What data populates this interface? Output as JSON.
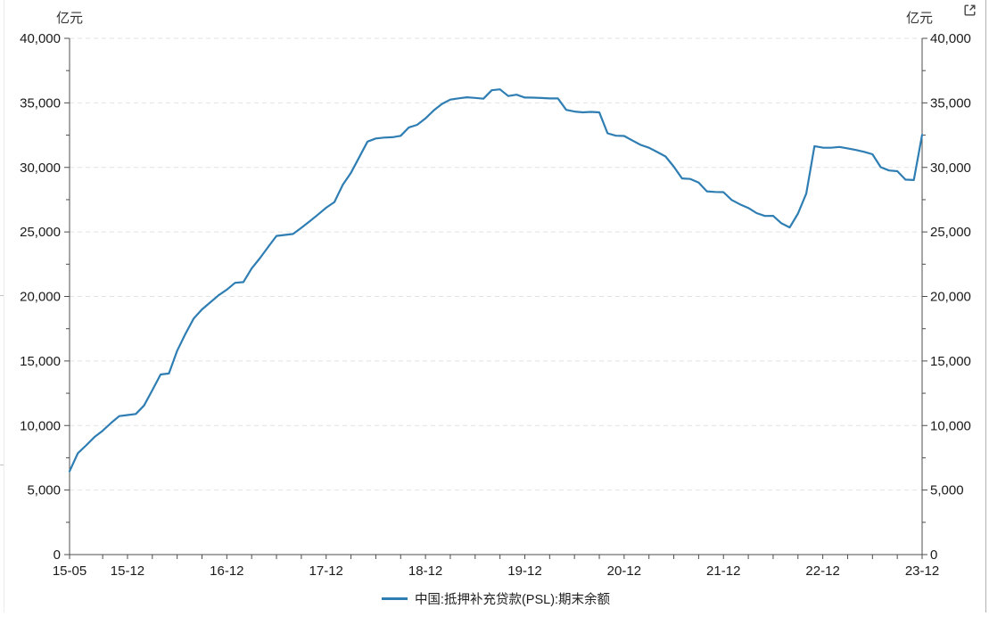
{
  "panel": {
    "unit_left": "亿元",
    "unit_right": "亿元"
  },
  "icons": {
    "external_link": "external-link-icon"
  },
  "legend": {
    "label": "中国:抵押补充贷款(PSL):期末余额"
  },
  "colors": {
    "line": "#2f7eb3",
    "grid": "#e2e2e2",
    "axis": "#4d4d4d",
    "text": "#1a1a1a",
    "icon": "#444444"
  },
  "chart_data": {
    "type": "line",
    "title": "",
    "series_name": "中国:抵押补充贷款(PSL):期末余额",
    "unit": "亿元",
    "ylim": [
      0,
      40000
    ],
    "ytick_step": 5000,
    "yminor_step": 2500,
    "ytick_labels": [
      "0",
      "5,000",
      "10,000",
      "15,000",
      "20,000",
      "25,000",
      "30,000",
      "35,000",
      "40,000"
    ],
    "xtick_labels": [
      "15-05",
      "15-12",
      "16-12",
      "17-12",
      "18-12",
      "19-12",
      "20-12",
      "21-12",
      "22-12",
      "23-12"
    ],
    "grid": "horizontal-dashed",
    "legend_position": "bottom-center",
    "x": [
      "15-05",
      "15-06",
      "15-07",
      "15-08",
      "15-09",
      "15-10",
      "15-11",
      "15-12",
      "16-01",
      "16-02",
      "16-03",
      "16-04",
      "16-05",
      "16-06",
      "16-07",
      "16-08",
      "16-09",
      "16-10",
      "16-11",
      "16-12",
      "17-01",
      "17-02",
      "17-03",
      "17-04",
      "17-05",
      "17-06",
      "17-07",
      "17-08",
      "17-09",
      "17-10",
      "17-11",
      "17-12",
      "18-01",
      "18-02",
      "18-03",
      "18-04",
      "18-05",
      "18-06",
      "18-07",
      "18-08",
      "18-09",
      "18-10",
      "18-11",
      "18-12",
      "19-01",
      "19-02",
      "19-03",
      "19-04",
      "19-05",
      "19-06",
      "19-07",
      "19-08",
      "19-09",
      "19-10",
      "19-11",
      "19-12",
      "20-01",
      "20-02",
      "20-03",
      "20-04",
      "20-05",
      "20-06",
      "20-07",
      "20-08",
      "20-09",
      "20-10",
      "20-11",
      "20-12",
      "21-01",
      "21-02",
      "21-03",
      "21-04",
      "21-05",
      "21-06",
      "21-07",
      "21-08",
      "21-09",
      "21-10",
      "21-11",
      "21-12",
      "22-01",
      "22-02",
      "22-03",
      "22-04",
      "22-05",
      "22-06",
      "22-07",
      "22-08",
      "22-09",
      "22-10",
      "22-11",
      "22-12",
      "23-01",
      "23-02",
      "23-03",
      "23-04",
      "23-05",
      "23-06",
      "23-07",
      "23-08",
      "23-09",
      "23-10",
      "23-11",
      "23-12"
    ],
    "values": [
      6459,
      7858,
      8464,
      9098,
      9599,
      10188,
      10727,
      10812,
      10895,
      11550,
      12736,
      13956,
      14034,
      15800,
      17100,
      18297,
      18997,
      19544,
      20088,
      20526,
      21054,
      21109,
      22170,
      22970,
      23838,
      24694,
      24764,
      24842,
      25322,
      25821,
      26334,
      26876,
      27317,
      28640,
      29590,
      30800,
      32000,
      32242,
      32313,
      32338,
      32450,
      33100,
      33300,
      33795,
      34419,
      34921,
      35253,
      35353,
      35435,
      35385,
      35322,
      35979,
      36049,
      35533,
      35633,
      35412,
      35408,
      35379,
      35342,
      35344,
      34456,
      34330,
      34267,
      34300,
      34266,
      32644,
      32456,
      32437,
      32080,
      31742,
      31524,
      31190,
      30843,
      30052,
      29150,
      29103,
      28820,
      28146,
      28100,
      28081,
      27473,
      27135,
      26857,
      26461,
      26236,
      26248,
      25670,
      25346,
      26428,
      27971,
      31646,
      31528,
      31522,
      31587,
      31474,
      31349,
      31205,
      31022,
      30019,
      29762,
      29704,
      29050,
      29022,
      32522
    ]
  }
}
